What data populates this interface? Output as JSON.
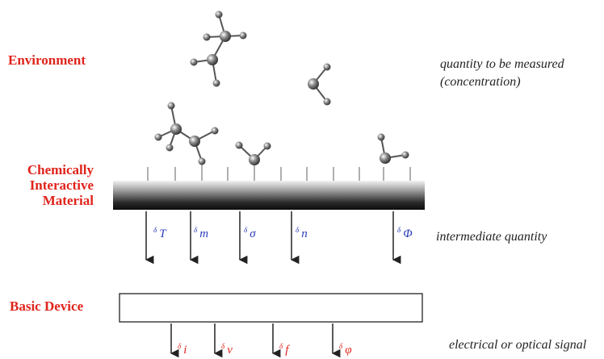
{
  "labels": {
    "environment": "Environment",
    "material_line1": "Chemically",
    "material_line2": "Interactive",
    "material_line3": "Material",
    "basic_device": "Basic Device"
  },
  "annotations": {
    "measured_line1": "quantity to be measured",
    "measured_line2": "(concentration)",
    "intermediate": "intermediate quantity",
    "signal": "electrical or optical signal"
  },
  "intermediate_symbols": [
    {
      "delta": "δ",
      "symbol": "T"
    },
    {
      "delta": "δ",
      "symbol": "m"
    },
    {
      "delta": "δ",
      "symbol": "σ"
    },
    {
      "delta": "δ",
      "symbol": "n"
    },
    {
      "delta": "δ",
      "symbol": "Φ"
    }
  ],
  "signal_symbols": [
    {
      "delta": "δ",
      "symbol": "i"
    },
    {
      "delta": "δ",
      "symbol": "v"
    },
    {
      "delta": "δ",
      "symbol": "f"
    },
    {
      "delta": "δ",
      "symbol": "φ"
    }
  ],
  "colors": {
    "label_red": "#e0241b",
    "symbol_blue": "#2b3db8",
    "bar_dark": "#1a1a1a"
  }
}
